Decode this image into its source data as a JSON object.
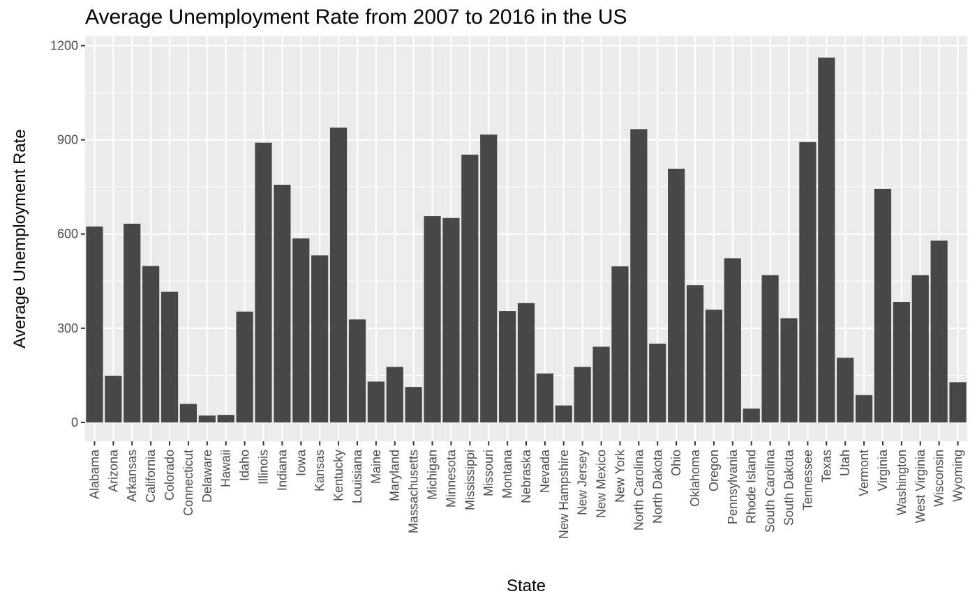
{
  "chart_data": {
    "type": "bar",
    "title": "Average Unemployment Rate from 2007 to 2016 in the US",
    "xlabel": "State",
    "ylabel": "Average Unemployment Rate",
    "ylim": [
      -60,
      1230
    ],
    "yticks": [
      0,
      300,
      600,
      900,
      1200
    ],
    "ytick_labels": [
      "0",
      "300",
      "600",
      "900",
      "1200"
    ],
    "grid": true,
    "bar_color": "#474747",
    "panel_background": "#ebebeb",
    "categories": [
      "Alabama",
      "Arizona",
      "Arkansas",
      "California",
      "Colorado",
      "Connecticut",
      "Delaware",
      "Hawaii",
      "Idaho",
      "Illinois",
      "Indiana",
      "Iowa",
      "Kansas",
      "Kentucky",
      "Louisiana",
      "Maine",
      "Maryland",
      "Massachusetts",
      "Michigan",
      "Minnesota",
      "Mississippi",
      "Missouri",
      "Montana",
      "Nebraska",
      "Nevada",
      "New Hampshire",
      "New Jersey",
      "New Mexico",
      "New York",
      "North Carolina",
      "North Dakota",
      "Ohio",
      "Oklahoma",
      "Oregon",
      "Pennsylvania",
      "Rhode Island",
      "South Carolina",
      "South Dakota",
      "Tennessee",
      "Texas",
      "Utah",
      "Vermont",
      "Virginia",
      "Washington",
      "West Virginia",
      "Wisconsin",
      "Wyoming"
    ],
    "values": [
      624,
      149,
      633,
      498,
      416,
      59,
      22,
      24,
      353,
      891,
      757,
      586,
      532,
      939,
      328,
      130,
      177,
      113,
      657,
      651,
      853,
      917,
      355,
      380,
      156,
      54,
      177,
      241,
      497,
      934,
      251,
      808,
      437,
      359,
      523,
      44,
      469,
      332,
      893,
      1162,
      206,
      87,
      744,
      384,
      469,
      579,
      128
    ]
  }
}
